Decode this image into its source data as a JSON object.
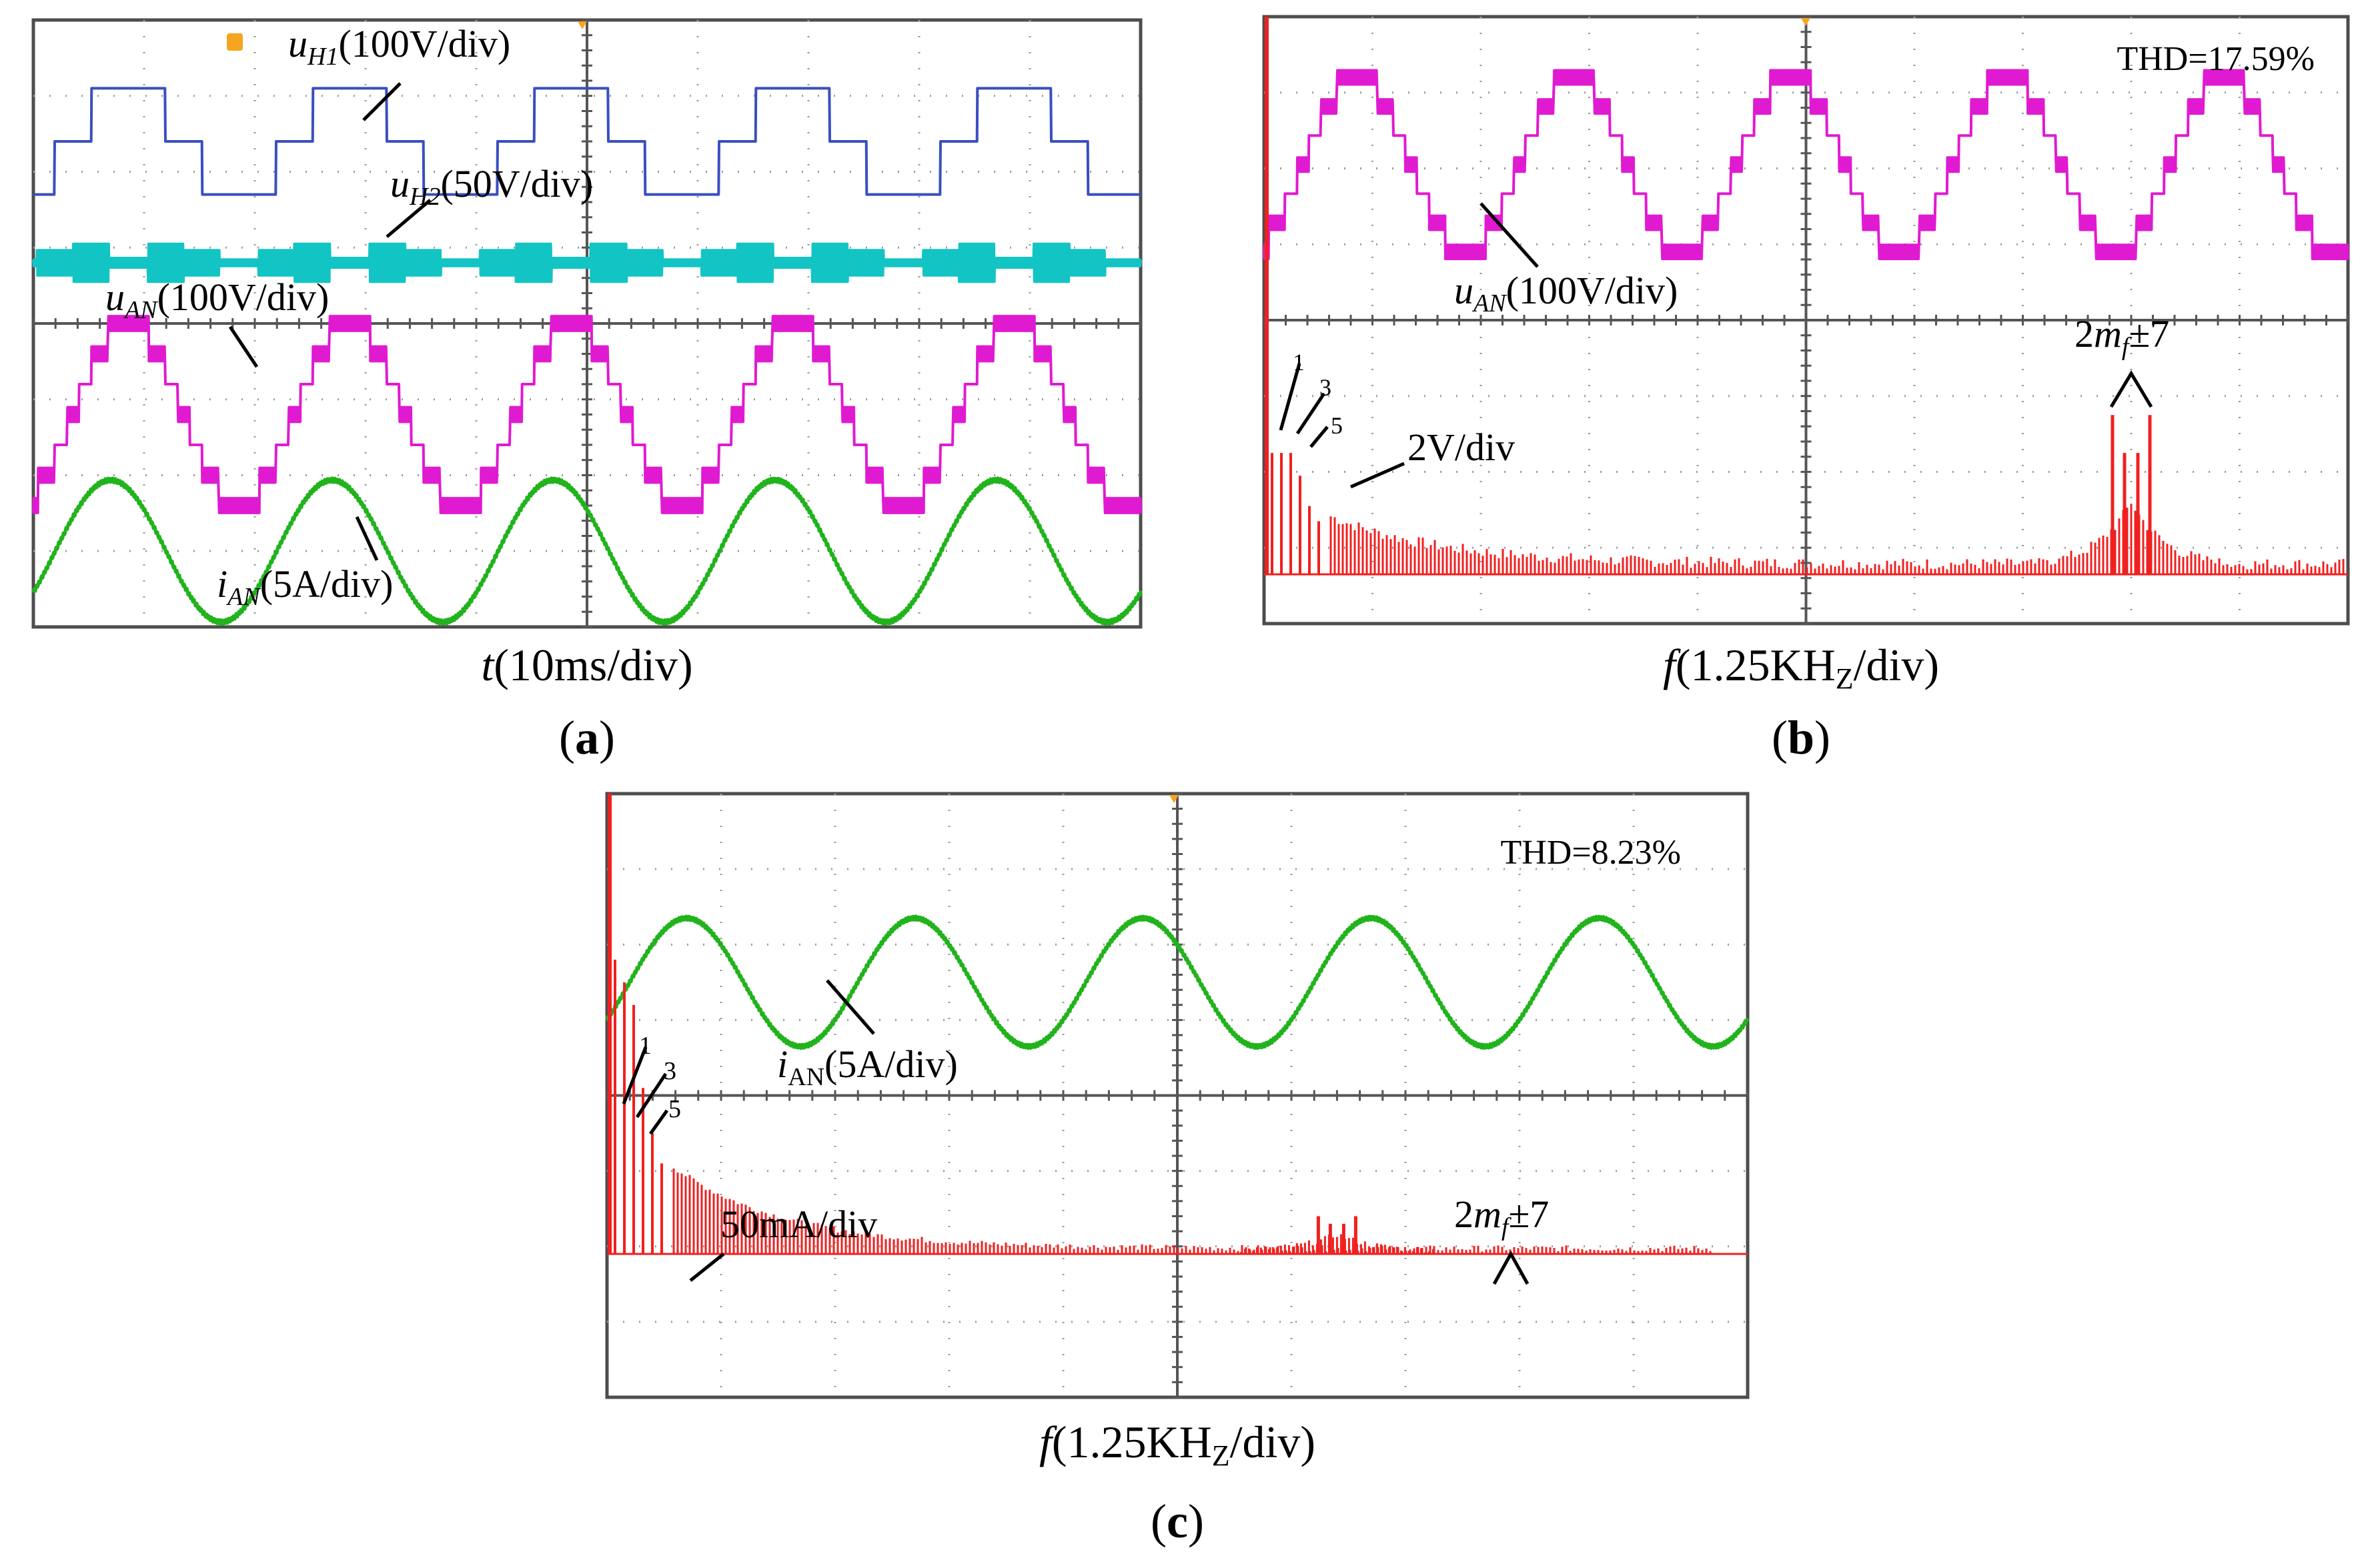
{
  "colors": {
    "screen_bg": "#ffffff",
    "frame": "#4d4d4d",
    "grid": "#9a9a9a",
    "center_line": "#555555",
    "uH1": "#3a4fbf",
    "uH2": "#13c4c4",
    "uAN": "#e01ad1",
    "iAN": "#21b31c",
    "spectrum": "#f02020",
    "marker": "#f5a51f"
  },
  "chart_data": [
    {
      "panel": "a",
      "type": "line",
      "panel_label": "a",
      "xlabel_var": "t",
      "xlabel_unit": "(10ms/div)",
      "time_window_ms": 100,
      "fundamental_hz": 50,
      "divisions": {
        "x": 10,
        "y": 8
      },
      "series": [
        {
          "name": "uH1",
          "label_var": "u",
          "label_sub": "H1",
          "label_scale": "(100V/div)",
          "waveform": "quasi-square",
          "amplitude_div": 1.0
        },
        {
          "name": "uH2",
          "label_var": "u",
          "label_sub": "H2",
          "label_scale": "(50V/div)",
          "waveform": "pwm-band",
          "amplitude_div": 0.55
        },
        {
          "name": "uAN",
          "label_var": "u",
          "label_sub": "AN",
          "label_scale": "(100V/div)",
          "waveform": "multilevel-staircase",
          "amplitude_div": 1.2
        },
        {
          "name": "iAN",
          "label_var": "i",
          "label_sub": "AN",
          "label_scale": "(5A/div)",
          "waveform": "sine-with-ripple",
          "amplitude_div": 1.1
        }
      ]
    },
    {
      "panel": "b",
      "type": "line",
      "panel_label": "b",
      "xlabel_var": "f",
      "xlabel_unit": "(1.25KH",
      "xlabel_sub": "Z",
      "xlabel_tail": "/div)",
      "thd": "THD=17.59%",
      "time_window_ms": 100,
      "fundamental_hz": 50,
      "series": [
        {
          "name": "uAN",
          "label_var": "u",
          "label_sub": "AN",
          "label_scale": "(100V/div)",
          "waveform": "multilevel-staircase"
        }
      ],
      "spectrum": {
        "type": "bar",
        "scale_label": "2V/div",
        "harmonic_labels": [
          "1",
          "3",
          "5"
        ],
        "sideband_label_prefix": "2",
        "sideband_label_var": "m",
        "sideband_label_sub": "f",
        "sideband_label_suffix": "±7",
        "freq_range_khz": [
          0,
          12.5
        ],
        "low_order_peaks_div": [
          1.6,
          1.6,
          1.6,
          1.3,
          0.9,
          0.7
        ],
        "sideband_center_khz": 10.0,
        "sideband_peaks_div": [
          2.1,
          2.1,
          1.6,
          1.6
        ],
        "noise_floor_div": 0.15
      }
    },
    {
      "panel": "c",
      "type": "line",
      "panel_label": "c",
      "xlabel_var": "f",
      "xlabel_unit": "(1.25KH",
      "xlabel_sub": "Z",
      "xlabel_tail": "/div)",
      "thd": "THD=8.23%",
      "time_window_ms": 100,
      "fundamental_hz": 50,
      "series": [
        {
          "name": "iAN",
          "label_var": "i",
          "label_sub": "AN",
          "label_scale": "(5A/div)",
          "waveform": "sine-with-ripple"
        }
      ],
      "spectrum": {
        "type": "bar",
        "scale_label": "50mA/div",
        "harmonic_labels": [
          "1",
          "3",
          "5"
        ],
        "sideband_label_prefix": "2",
        "sideband_label_var": "m",
        "sideband_label_sub": "f",
        "sideband_label_suffix": "±7",
        "freq_range_khz": [
          0,
          12.5
        ],
        "low_order_peaks_div": [
          3.9,
          3.6,
          3.3,
          2.2,
          1.6,
          1.2
        ],
        "sideband_center_khz": 8.0,
        "sideband_peaks_div": [
          0.5,
          0.5,
          0.4,
          0.4
        ],
        "noise_floor_div": 0.08
      }
    }
  ]
}
